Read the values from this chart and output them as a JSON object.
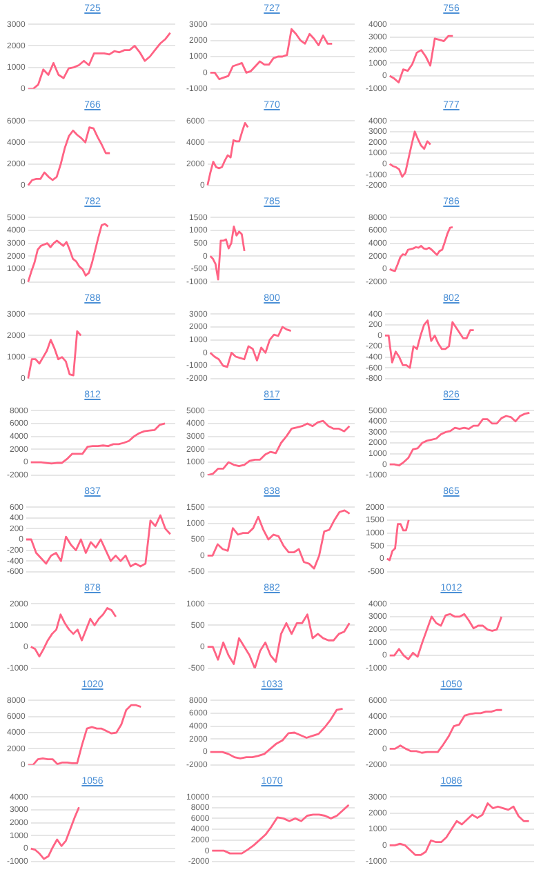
{
  "chart_data": [
    {
      "type": "line",
      "title": "725",
      "categories": [
        null,
        null,
        null,
        null,
        null,
        null,
        null,
        null,
        null,
        null,
        null,
        null,
        null,
        null,
        null,
        null,
        null,
        null,
        null,
        null,
        null,
        null,
        null,
        null,
        null,
        null,
        null,
        null,
        null,
        null
      ],
      "values": [
        0,
        0,
        200,
        900,
        650,
        1200,
        650,
        500,
        950,
        1000,
        1100,
        1300,
        1100,
        1650,
        1650,
        1650,
        1600,
        1750,
        1700,
        1800,
        1800,
        2000,
        1700,
        1300,
        1500,
        1800,
        2100,
        2300,
        2600,
        null
      ],
      "color": "#ff6384",
      "ylim": [
        0,
        3000
      ],
      "yticks": [
        0,
        1000,
        2000,
        3000
      ],
      "grid": "y",
      "tick_labels": "y",
      "marker": "none"
    },
    {
      "type": "line",
      "title": "727",
      "categories": [
        null,
        null,
        null,
        null,
        null,
        null,
        null,
        null,
        null,
        null,
        null,
        null,
        null,
        null,
        null,
        null,
        null,
        null,
        null,
        null,
        null,
        null,
        null,
        null,
        null,
        null,
        null,
        null,
        null,
        null,
        null,
        null,
        null
      ],
      "values": [
        0,
        0,
        -400,
        -300,
        -200,
        400,
        500,
        600,
        0,
        100,
        400,
        700,
        500,
        500,
        900,
        1000,
        1000,
        1100,
        2700,
        2400,
        2000,
        1800,
        2400,
        2100,
        1700,
        2300,
        1800,
        1800,
        null,
        null,
        null,
        null,
        null
      ],
      "color": "#ff6384",
      "ylim": [
        -1000,
        3000
      ],
      "yticks": [
        -1000,
        0,
        1000,
        2000,
        3000
      ],
      "grid": "y",
      "tick_labels": "y",
      "marker": "none"
    },
    {
      "type": "line",
      "title": "756",
      "categories": [
        null,
        null,
        null,
        null,
        null,
        null,
        null,
        null,
        null,
        null,
        null,
        null,
        null,
        null,
        null,
        null,
        null,
        null,
        null,
        null,
        null,
        null,
        null,
        null,
        null,
        null,
        null,
        null,
        null,
        null,
        null,
        null,
        null
      ],
      "values": [
        0,
        -200,
        -500,
        500,
        400,
        900,
        1800,
        2000,
        1500,
        800,
        2900,
        2800,
        2700,
        3100,
        3100,
        null,
        null,
        null,
        null,
        null,
        null,
        null,
        null,
        null,
        null,
        null,
        null,
        null,
        null,
        null,
        null,
        null,
        null
      ],
      "color": "#ff6384",
      "ylim": [
        -1000,
        4000
      ],
      "yticks": [
        -1000,
        0,
        1000,
        2000,
        3000,
        4000
      ],
      "grid": "y",
      "tick_labels": "y",
      "marker": "none"
    },
    {
      "type": "line",
      "title": "766",
      "categories": [
        null,
        null,
        null,
        null,
        null,
        null,
        null,
        null,
        null,
        null,
        null,
        null,
        null,
        null,
        null,
        null,
        null,
        null,
        null,
        null,
        null,
        null,
        null,
        null,
        null,
        null,
        null,
        null,
        null,
        null,
        null,
        null,
        null,
        null,
        null,
        null,
        null
      ],
      "values": [
        0,
        500,
        600,
        600,
        1200,
        800,
        500,
        800,
        2000,
        3500,
        4600,
        5100,
        4700,
        4400,
        4000,
        5400,
        5300,
        4500,
        3800,
        3000,
        3000,
        null,
        null,
        null,
        null,
        null,
        null,
        null,
        null,
        null,
        null,
        null,
        null,
        null,
        null,
        null,
        null
      ],
      "color": "#ff6384",
      "ylim": [
        0,
        6000
      ],
      "yticks": [
        0,
        2000,
        4000,
        6000
      ],
      "grid": "y",
      "tick_labels": "y",
      "marker": "none"
    },
    {
      "type": "line",
      "title": "770",
      "categories": [
        null,
        null,
        null,
        null,
        null,
        null,
        null,
        null,
        null,
        null,
        null,
        null,
        null,
        null,
        null,
        null,
        null,
        null,
        null,
        null,
        null,
        null,
        null,
        null,
        null,
        null,
        null,
        null,
        null,
        null,
        null,
        null,
        null,
        null,
        null,
        null,
        null,
        null,
        null,
        null,
        null,
        null,
        null,
        null,
        null,
        null,
        null,
        null,
        null,
        null,
        null,
        null
      ],
      "values": [
        0,
        1200,
        2200,
        1700,
        1600,
        1700,
        2300,
        2800,
        2600,
        4200,
        4100,
        4100,
        5000,
        5800,
        5400,
        null,
        null,
        null,
        null,
        null,
        null,
        null,
        null,
        null,
        null,
        null,
        null,
        null,
        null,
        null,
        null,
        null,
        null,
        null,
        null,
        null,
        null,
        null,
        null,
        null,
        null,
        null,
        null,
        null,
        null,
        null,
        null,
        null,
        null,
        null,
        null,
        null
      ],
      "color": "#ff6384",
      "ylim": [
        0,
        6000
      ],
      "yticks": [
        0,
        2000,
        4000,
        6000
      ],
      "grid": "y",
      "tick_labels": "y",
      "marker": "none"
    },
    {
      "type": "line",
      "title": "777",
      "categories": [
        null,
        null,
        null,
        null,
        null,
        null,
        null,
        null,
        null,
        null,
        null,
        null,
        null,
        null,
        null,
        null,
        null,
        null,
        null,
        null,
        null,
        null,
        null,
        null,
        null,
        null,
        null,
        null,
        null,
        null,
        null,
        null,
        null,
        null,
        null,
        null,
        null,
        null,
        null,
        null,
        null,
        null,
        null,
        null,
        null,
        null,
        null
      ],
      "values": [
        0,
        -200,
        -300,
        -500,
        -1200,
        -800,
        500,
        1800,
        3000,
        2300,
        1700,
        1400,
        2100,
        1800,
        null,
        null,
        null,
        null,
        null,
        null,
        null,
        null,
        null,
        null,
        null,
        null,
        null,
        null,
        null,
        null,
        null,
        null,
        null,
        null,
        null,
        null,
        null,
        null,
        null,
        null,
        null,
        null,
        null,
        null,
        null,
        null,
        null
      ],
      "color": "#ff6384",
      "ylim": [
        -2000,
        4000
      ],
      "yticks": [
        -2000,
        -1000,
        0,
        1000,
        2000,
        3000,
        4000
      ],
      "grid": "y",
      "tick_labels": "y",
      "marker": "none"
    },
    {
      "type": "line",
      "title": "782",
      "categories": [
        null,
        null,
        null,
        null,
        null,
        null,
        null,
        null,
        null,
        null,
        null,
        null,
        null,
        null,
        null,
        null,
        null,
        null,
        null,
        null,
        null,
        null,
        null,
        null,
        null,
        null,
        null,
        null,
        null,
        null,
        null,
        null,
        null,
        null,
        null,
        null,
        null,
        null,
        null,
        null,
        null,
        null,
        null,
        null,
        null,
        null,
        null
      ],
      "values": [
        0,
        800,
        1500,
        2500,
        2800,
        2900,
        3000,
        2700,
        3000,
        3200,
        3000,
        2800,
        3100,
        2500,
        1800,
        1600,
        1200,
        1000,
        500,
        700,
        1500,
        2500,
        3500,
        4400,
        4500,
        4300,
        null,
        null,
        null,
        null,
        null,
        null,
        null,
        null,
        null,
        null,
        null,
        null,
        null,
        null,
        null,
        null,
        null,
        null,
        null,
        null,
        null
      ],
      "color": "#ff6384",
      "ylim": [
        0,
        5000
      ],
      "yticks": [
        0,
        1000,
        2000,
        3000,
        4000,
        5000
      ],
      "grid": "y",
      "tick_labels": "y",
      "marker": "none"
    },
    {
      "type": "line",
      "title": "785",
      "categories": [
        null,
        null,
        null,
        null,
        null,
        null,
        null,
        null,
        null,
        null,
        null,
        null,
        null,
        null,
        null,
        null,
        null,
        null,
        null,
        null,
        null,
        null,
        null,
        null,
        null,
        null,
        null,
        null,
        null,
        null,
        null,
        null,
        null,
        null,
        null,
        null,
        null,
        null,
        null,
        null,
        null,
        null,
        null,
        null,
        null,
        null,
        null,
        null,
        null,
        null,
        null,
        null,
        null,
        null,
        null,
        null
      ],
      "values": [
        0,
        -100,
        -300,
        -900,
        600,
        600,
        650,
        300,
        500,
        1150,
        800,
        950,
        850,
        200,
        null,
        null,
        null,
        null,
        null,
        null,
        null,
        null,
        null,
        null,
        null,
        null,
        null,
        null,
        null,
        null,
        null,
        null,
        null,
        null,
        null,
        null,
        null,
        null,
        null,
        null,
        null,
        null,
        null,
        null,
        null,
        null,
        null,
        null,
        null,
        null,
        null,
        null,
        null,
        null,
        null,
        null
      ],
      "color": "#ff6384",
      "ylim": [
        -1000,
        1500
      ],
      "yticks": [
        -1000,
        -500,
        0,
        500,
        1000,
        1500
      ],
      "grid": "y",
      "tick_labels": "y",
      "marker": "none"
    },
    {
      "type": "line",
      "title": "786",
      "categories": [
        null,
        null,
        null,
        null,
        null,
        null,
        null,
        null,
        null,
        null,
        null,
        null,
        null,
        null,
        null,
        null,
        null,
        null,
        null,
        null,
        null,
        null,
        null,
        null,
        null,
        null,
        null,
        null,
        null,
        null,
        null,
        null,
        null,
        null,
        null,
        null,
        null,
        null,
        null,
        null,
        null,
        null,
        null,
        null,
        null,
        null,
        null,
        null,
        null,
        null,
        null,
        null,
        null,
        null,
        null,
        null
      ],
      "values": [
        0,
        -200,
        -300,
        700,
        1800,
        2300,
        2200,
        3000,
        3100,
        3200,
        3400,
        3300,
        3600,
        3200,
        3100,
        3300,
        3000,
        2600,
        2200,
        2800,
        3000,
        4200,
        5500,
        6400,
        6500,
        null,
        null,
        null,
        null,
        null,
        null,
        null,
        null,
        null,
        null,
        null,
        null,
        null,
        null,
        null,
        null,
        null,
        null,
        null,
        null,
        null,
        null,
        null,
        null,
        null,
        null,
        null,
        null,
        null,
        null,
        null
      ],
      "color": "#ff6384",
      "ylim": [
        -2000,
        8000
      ],
      "yticks": [
        -2000,
        0,
        2000,
        4000,
        6000,
        8000
      ],
      "grid": "y",
      "tick_labels": "y",
      "marker": "none"
    },
    {
      "type": "line",
      "title": "788",
      "categories": [
        null,
        null,
        null,
        null,
        null,
        null,
        null,
        null,
        null,
        null,
        null,
        null,
        null,
        null,
        null,
        null,
        null,
        null,
        null,
        null,
        null,
        null,
        null,
        null,
        null,
        null,
        null,
        null,
        null,
        null,
        null,
        null,
        null,
        null,
        null,
        null,
        null,
        null,
        null,
        null
      ],
      "values": [
        0,
        900,
        900,
        700,
        1000,
        1300,
        1800,
        1400,
        900,
        1000,
        800,
        200,
        150,
        2200,
        2000,
        null,
        null,
        null,
        null,
        null,
        null,
        null,
        null,
        null,
        null,
        null,
        null,
        null,
        null,
        null,
        null,
        null,
        null,
        null,
        null,
        null,
        null,
        null,
        null,
        null
      ],
      "color": "#ff6384",
      "ylim": [
        0,
        3000
      ],
      "yticks": [
        0,
        1000,
        2000,
        3000
      ],
      "grid": "y",
      "tick_labels": "y",
      "marker": "none"
    },
    {
      "type": "line",
      "title": "800",
      "categories": [
        null,
        null,
        null,
        null,
        null,
        null,
        null,
        null,
        null,
        null,
        null,
        null,
        null,
        null,
        null,
        null,
        null,
        null,
        null,
        null,
        null,
        null,
        null,
        null,
        null,
        null,
        null,
        null,
        null,
        null,
        null,
        null,
        null,
        null,
        null
      ],
      "values": [
        0,
        -300,
        -500,
        -1000,
        -1100,
        0,
        -300,
        -400,
        -500,
        500,
        300,
        -600,
        400,
        0,
        1000,
        1400,
        1300,
        2000,
        1800,
        1700,
        null,
        null,
        null,
        null,
        null,
        null,
        null,
        null,
        null,
        null,
        null,
        null,
        null,
        null,
        null
      ],
      "color": "#ff6384",
      "ylim": [
        -2000,
        3000
      ],
      "yticks": [
        -2000,
        -1000,
        0,
        1000,
        2000,
        3000
      ],
      "grid": "y",
      "tick_labels": "y",
      "marker": "none"
    },
    {
      "type": "line",
      "title": "802",
      "categories": [
        null,
        null,
        null,
        null,
        null,
        null,
        null,
        null,
        null,
        null,
        null,
        null,
        null,
        null,
        null,
        null,
        null,
        null,
        null,
        null,
        null,
        null,
        null,
        null,
        null,
        null,
        null,
        null,
        null,
        null,
        null,
        null,
        null,
        null,
        null,
        null,
        null,
        null,
        null,
        null,
        null,
        null,
        null
      ],
      "values": [
        0,
        0,
        -500,
        -300,
        -400,
        -550,
        -550,
        -600,
        -200,
        -250,
        0,
        200,
        280,
        -100,
        0,
        -150,
        -250,
        -250,
        -200,
        250,
        150,
        50,
        -50,
        -50,
        100,
        100,
        null,
        null,
        null,
        null,
        null,
        null,
        null,
        null,
        null,
        null,
        null,
        null,
        null,
        null,
        null,
        null,
        null
      ],
      "color": "#ff6384",
      "ylim": [
        -800,
        400
      ],
      "yticks": [
        -800,
        -600,
        -400,
        -200,
        0,
        200,
        400
      ],
      "grid": "y",
      "tick_labels": "y",
      "marker": "none"
    },
    {
      "type": "line",
      "title": "812",
      "categories": [
        null,
        null,
        null,
        null,
        null,
        null,
        null,
        null,
        null,
        null,
        null,
        null,
        null,
        null,
        null,
        null,
        null,
        null,
        null,
        null,
        null,
        null,
        null,
        null,
        null,
        null,
        null,
        null,
        null
      ],
      "values": [
        0,
        0,
        0,
        -100,
        -200,
        -100,
        -100,
        500,
        1300,
        1300,
        1300,
        2400,
        2500,
        2500,
        2600,
        2500,
        2800,
        2800,
        3000,
        3300,
        4000,
        4500,
        4800,
        4900,
        5000,
        5800,
        6000,
        null,
        null
      ],
      "color": "#ff6384",
      "ylim": [
        -2000,
        8000
      ],
      "yticks": [
        -2000,
        0,
        2000,
        4000,
        6000,
        8000
      ],
      "grid": "y",
      "tick_labels": "y",
      "marker": "none"
    },
    {
      "type": "line",
      "title": "817",
      "categories": [
        null,
        null,
        null,
        null,
        null,
        null,
        null,
        null,
        null,
        null,
        null,
        null,
        null,
        null,
        null,
        null,
        null,
        null,
        null,
        null,
        null,
        null,
        null,
        null,
        null,
        null,
        null,
        null,
        null
      ],
      "values": [
        0,
        100,
        500,
        500,
        1000,
        800,
        700,
        800,
        1100,
        1200,
        1200,
        1600,
        1800,
        1700,
        2500,
        3000,
        3600,
        3700,
        3800,
        4000,
        3800,
        4100,
        4200,
        3800,
        3600,
        3600,
        3400,
        3800,
        null
      ],
      "color": "#ff6384",
      "ylim": [
        0,
        5000
      ],
      "yticks": [
        0,
        1000,
        2000,
        3000,
        4000,
        5000
      ],
      "grid": "y",
      "tick_labels": "y",
      "marker": "none"
    },
    {
      "type": "line",
      "title": "826",
      "categories": [
        null,
        null,
        null,
        null,
        null,
        null,
        null,
        null,
        null,
        null,
        null,
        null,
        null,
        null,
        null,
        null,
        null,
        null,
        null,
        null,
        null,
        null,
        null,
        null,
        null,
        null,
        null,
        null,
        null,
        null,
        null,
        null
      ],
      "values": [
        0,
        0,
        -100,
        200,
        600,
        1400,
        1500,
        2000,
        2200,
        2300,
        2400,
        2800,
        3000,
        3100,
        3400,
        3300,
        3400,
        3300,
        3600,
        3600,
        4200,
        4200,
        3800,
        3800,
        4300,
        4500,
        4400,
        4000,
        4500,
        4700,
        4800,
        null
      ],
      "color": "#ff6384",
      "ylim": [
        -1000,
        5000
      ],
      "yticks": [
        -1000,
        0,
        1000,
        2000,
        3000,
        4000,
        5000
      ],
      "grid": "y",
      "tick_labels": "y",
      "marker": "none"
    },
    {
      "type": "line",
      "title": "837",
      "categories": [
        null,
        null,
        null,
        null,
        null,
        null,
        null,
        null,
        null,
        null,
        null,
        null,
        null,
        null,
        null,
        null,
        null,
        null,
        null,
        null,
        null,
        null,
        null,
        null,
        null,
        null,
        null,
        null,
        null,
        null,
        null
      ],
      "values": [
        0,
        0,
        -250,
        -350,
        -450,
        -300,
        -250,
        -400,
        50,
        -100,
        -200,
        0,
        -250,
        -50,
        -150,
        0,
        -200,
        -400,
        -300,
        -400,
        -300,
        -500,
        -450,
        -500,
        -450,
        350,
        250,
        450,
        200,
        100,
        null
      ],
      "color": "#ff6384",
      "ylim": [
        -600,
        600
      ],
      "yticks": [
        -600,
        -400,
        -200,
        0,
        200,
        400,
        600
      ],
      "grid": "y",
      "tick_labels": "y",
      "marker": "none"
    },
    {
      "type": "line",
      "title": "838",
      "categories": [
        null,
        null,
        null,
        null,
        null,
        null,
        null,
        null,
        null,
        null,
        null,
        null,
        null,
        null,
        null,
        null,
        null,
        null,
        null,
        null,
        null,
        null,
        null,
        null,
        null,
        null,
        null,
        null,
        null,
        null
      ],
      "values": [
        0,
        0,
        350,
        200,
        150,
        850,
        650,
        700,
        700,
        850,
        1200,
        800,
        500,
        650,
        600,
        300,
        100,
        100,
        200,
        -200,
        -250,
        -400,
        0,
        750,
        800,
        1100,
        1350,
        1400,
        1300,
        null
      ],
      "color": "#ff6384",
      "ylim": [
        -500,
        1500
      ],
      "yticks": [
        -500,
        0,
        500,
        1000,
        1500
      ],
      "grid": "y",
      "tick_labels": "y",
      "marker": "none"
    },
    {
      "type": "line",
      "title": "865",
      "categories": [
        null,
        null,
        null,
        null,
        null,
        null,
        null,
        null,
        null,
        null,
        null,
        null,
        null,
        null,
        null,
        null,
        null,
        null,
        null,
        null,
        null,
        null,
        null,
        null,
        null,
        null,
        null,
        null,
        null,
        null,
        null,
        null,
        null,
        null,
        null,
        null,
        null,
        null,
        null,
        null,
        null,
        null,
        null,
        null,
        null,
        null,
        null,
        null,
        null,
        null,
        null,
        null,
        null,
        null,
        null
      ],
      "values": [
        0,
        -50,
        300,
        400,
        1350,
        1350,
        1100,
        1100,
        1500,
        null,
        null,
        null,
        null,
        null,
        null,
        null,
        null,
        null,
        null,
        null,
        null,
        null,
        null,
        null,
        null,
        null,
        null,
        null,
        null,
        null,
        null,
        null,
        null,
        null,
        null,
        null,
        null,
        null,
        null,
        null,
        null,
        null,
        null,
        null,
        null,
        null,
        null,
        null,
        null,
        null,
        null,
        null,
        null,
        null,
        null
      ],
      "color": "#ff6384",
      "ylim": [
        -500,
        2000
      ],
      "yticks": [
        -500,
        0,
        500,
        1000,
        1500,
        2000
      ],
      "grid": "y",
      "tick_labels": "y",
      "marker": "none"
    },
    {
      "type": "line",
      "title": "878",
      "categories": [
        null,
        null,
        null,
        null,
        null,
        null,
        null,
        null,
        null,
        null,
        null,
        null,
        null,
        null,
        null,
        null,
        null,
        null,
        null,
        null,
        null,
        null,
        null,
        null,
        null,
        null,
        null,
        null,
        null,
        null,
        null,
        null,
        null,
        null,
        null
      ],
      "values": [
        0,
        -100,
        -450,
        -100,
        300,
        600,
        800,
        1500,
        1100,
        800,
        600,
        800,
        300,
        800,
        1300,
        1000,
        1300,
        1500,
        1800,
        1700,
        1400,
        null,
        null,
        null,
        null,
        null,
        null,
        null,
        null,
        null,
        null,
        null,
        null,
        null,
        null
      ],
      "color": "#ff6384",
      "ylim": [
        -1000,
        2000
      ],
      "yticks": [
        -1000,
        0,
        1000,
        2000
      ],
      "grid": "y",
      "tick_labels": "y",
      "marker": "none"
    },
    {
      "type": "line",
      "title": "882",
      "categories": [
        null,
        null,
        null,
        null,
        null,
        null,
        null,
        null,
        null,
        null,
        null,
        null,
        null,
        null,
        null,
        null,
        null,
        null,
        null,
        null,
        null,
        null,
        null,
        null,
        null,
        null,
        null,
        null,
        null
      ],
      "values": [
        0,
        0,
        -300,
        100,
        -200,
        -400,
        200,
        0,
        -200,
        -500,
        -100,
        100,
        -200,
        -350,
        300,
        550,
        300,
        550,
        550,
        750,
        200,
        300,
        200,
        150,
        150,
        300,
        350,
        550,
        null
      ],
      "color": "#ff6384",
      "ylim": [
        -500,
        1000
      ],
      "yticks": [
        -500,
        0,
        500,
        1000
      ],
      "grid": "y",
      "tick_labels": "y",
      "marker": "none"
    },
    {
      "type": "line",
      "title": "1012",
      "categories": [
        null,
        null,
        null,
        null,
        null,
        null,
        null,
        null,
        null,
        null,
        null,
        null,
        null,
        null,
        null,
        null,
        null,
        null,
        null,
        null,
        null,
        null,
        null,
        null,
        null,
        null,
        null,
        null,
        null,
        null,
        null,
        null
      ],
      "values": [
        0,
        0,
        500,
        0,
        -300,
        200,
        -100,
        1000,
        2000,
        3000,
        2500,
        2300,
        3100,
        3200,
        3000,
        3000,
        3200,
        2700,
        2100,
        2300,
        2300,
        2000,
        1900,
        2000,
        3000,
        null,
        null,
        null,
        null,
        null,
        null,
        null
      ],
      "color": "#ff6384",
      "ylim": [
        -1000,
        4000
      ],
      "yticks": [
        -1000,
        0,
        1000,
        2000,
        3000,
        4000
      ],
      "grid": "y",
      "tick_labels": "y",
      "marker": "none"
    },
    {
      "type": "line",
      "title": "1020",
      "categories": [
        null,
        null,
        null,
        null,
        null,
        null,
        null,
        null,
        null,
        null,
        null,
        null,
        null,
        null,
        null,
        null,
        null,
        null,
        null,
        null,
        null,
        null,
        null,
        null,
        null,
        null,
        null,
        null,
        null,
        null,
        null
      ],
      "values": [
        0,
        0,
        700,
        800,
        700,
        700,
        100,
        300,
        300,
        200,
        200,
        2500,
        4500,
        4700,
        4500,
        4500,
        4200,
        3900,
        4000,
        5000,
        6800,
        7400,
        7400,
        7200,
        null,
        null,
        null,
        null,
        null,
        null,
        null
      ],
      "color": "#ff6384",
      "ylim": [
        0,
        8000
      ],
      "yticks": [
        0,
        2000,
        4000,
        6000,
        8000
      ],
      "grid": "y",
      "tick_labels": "y",
      "marker": "none"
    },
    {
      "type": "line",
      "title": "1033",
      "categories": [
        null,
        null,
        null,
        null,
        null,
        null,
        null,
        null,
        null,
        null,
        null,
        null,
        null,
        null,
        null,
        null,
        null,
        null,
        null,
        null,
        null,
        null,
        null,
        null,
        null
      ],
      "values": [
        0,
        0,
        0,
        -300,
        -800,
        -1000,
        -800,
        -800,
        -600,
        -300,
        500,
        1300,
        1800,
        2900,
        3000,
        2600,
        2200,
        2500,
        2800,
        3800,
        5000,
        6500,
        6700,
        null,
        null
      ],
      "color": "#ff6384",
      "ylim": [
        -2000,
        8000
      ],
      "yticks": [
        -2000,
        0,
        2000,
        4000,
        6000,
        8000
      ],
      "grid": "y",
      "tick_labels": "y",
      "marker": "none"
    },
    {
      "type": "line",
      "title": "1050",
      "categories": [
        null,
        null,
        null,
        null,
        null,
        null,
        null,
        null,
        null,
        null,
        null,
        null,
        null,
        null,
        null,
        null,
        null,
        null,
        null,
        null,
        null,
        null,
        null,
        null,
        null,
        null,
        null,
        null
      ],
      "values": [
        0,
        0,
        400,
        0,
        -300,
        -300,
        -500,
        -400,
        -400,
        -400,
        500,
        1500,
        2800,
        3000,
        4100,
        4300,
        4400,
        4400,
        4600,
        4600,
        4800,
        4800,
        null,
        null,
        null,
        null,
        null,
        null
      ],
      "color": "#ff6384",
      "ylim": [
        -2000,
        6000
      ],
      "yticks": [
        -2000,
        0,
        2000,
        4000,
        6000
      ],
      "grid": "y",
      "tick_labels": "y",
      "marker": "none"
    },
    {
      "type": "line",
      "title": "1056",
      "categories": [
        null,
        null,
        null,
        null,
        null,
        null,
        null,
        null,
        null,
        null,
        null,
        null,
        null,
        null,
        null,
        null,
        null,
        null,
        null,
        null,
        null,
        null,
        null,
        null,
        null,
        null,
        null,
        null,
        null,
        null,
        null,
        null,
        null,
        null
      ],
      "values": [
        0,
        -100,
        -400,
        -800,
        -600,
        100,
        700,
        200,
        600,
        1500,
        2400,
        3200,
        null,
        null,
        null,
        null,
        null,
        null,
        null,
        null,
        null,
        null,
        null,
        null,
        null,
        null,
        null,
        null,
        null,
        null,
        null,
        null,
        null,
        null
      ],
      "color": "#ff6384",
      "ylim": [
        -1000,
        4000
      ],
      "yticks": [
        -1000,
        0,
        1000,
        2000,
        3000,
        4000
      ],
      "grid": "y",
      "tick_labels": "y",
      "marker": "none"
    },
    {
      "type": "line",
      "title": "1070",
      "categories": [
        null,
        null,
        null,
        null,
        null,
        null,
        null,
        null,
        null,
        null,
        null,
        null,
        null,
        null,
        null,
        null,
        null,
        null,
        null,
        null,
        null,
        null,
        null,
        null,
        null
      ],
      "values": [
        0,
        0,
        0,
        -500,
        -500,
        -500,
        200,
        1000,
        2000,
        3000,
        4500,
        6200,
        6000,
        5500,
        6000,
        5500,
        6500,
        6700,
        6700,
        6500,
        6000,
        6500,
        7500,
        8500,
        null
      ],
      "color": "#ff6384",
      "ylim": [
        -2000,
        10000
      ],
      "yticks": [
        -2000,
        0,
        2000,
        4000,
        6000,
        8000,
        10000
      ],
      "grid": "y",
      "tick_labels": "y",
      "marker": "none"
    },
    {
      "type": "line",
      "title": "1086",
      "categories": [
        null,
        null,
        null,
        null,
        null,
        null,
        null,
        null,
        null,
        null,
        null,
        null,
        null,
        null,
        null,
        null,
        null,
        null,
        null,
        null,
        null,
        null,
        null,
        null,
        null,
        null,
        null,
        null,
        null
      ],
      "values": [
        0,
        0,
        100,
        0,
        -300,
        -600,
        -600,
        -400,
        300,
        200,
        200,
        500,
        1000,
        1500,
        1300,
        1600,
        1900,
        1700,
        1900,
        2600,
        2300,
        2400,
        2300,
        2200,
        2400,
        1800,
        1500,
        1500,
        null
      ],
      "color": "#ff6384",
      "ylim": [
        -1000,
        3000
      ],
      "yticks": [
        -1000,
        0,
        1000,
        2000,
        3000
      ],
      "grid": "y",
      "tick_labels": "y",
      "marker": "none"
    }
  ]
}
